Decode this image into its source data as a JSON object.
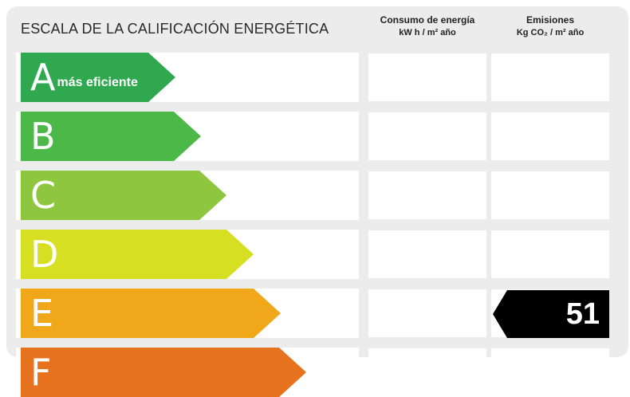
{
  "header": {
    "title": "ESCALA DE LA CALIFICACIÓN ENERGÉTICA",
    "consumo_label": "Consumo de energía",
    "consumo_unit": "kW h / m² año",
    "emisiones_label": "Emisiones",
    "emisiones_unit": "Kg CO₂ / m² año"
  },
  "ratings": [
    {
      "letter": "A",
      "note": "más eficiente",
      "color": "#2fa84f"
    },
    {
      "letter": "B",
      "note": "",
      "color": "#4cb848"
    },
    {
      "letter": "C",
      "note": "",
      "color": "#8fc640"
    },
    {
      "letter": "D",
      "note": "",
      "color": "#d7df23"
    },
    {
      "letter": "E",
      "note": "",
      "color": "#f0a71a"
    },
    {
      "letter": "F",
      "note": "",
      "color": "#e8731e"
    }
  ],
  "result": {
    "emisiones_value": "51",
    "emisiones_rating": "E"
  }
}
